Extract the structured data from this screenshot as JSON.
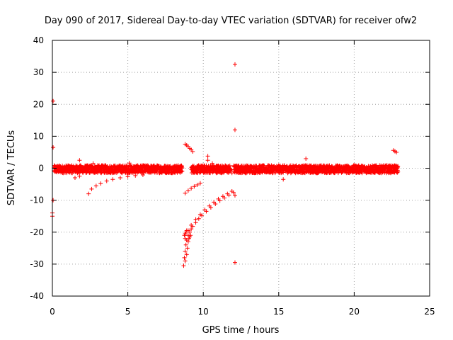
{
  "chart_data": {
    "type": "scatter",
    "title": "Day 090 of 2017, Sidereal Day-to-day VTEC variation (SDTVAR) for receiver ofw2",
    "xlabel": "GPS time / hours",
    "ylabel": "SDTVAR / TECUs",
    "xlim": [
      0,
      25
    ],
    "ylim": [
      -40,
      40
    ],
    "xticks": [
      0,
      5,
      10,
      15,
      20,
      25
    ],
    "yticks": [
      -40,
      -30,
      -20,
      -10,
      0,
      10,
      20,
      30,
      40
    ],
    "grid": true,
    "marker": "+",
    "series_color": "#ff0000",
    "background_band": {
      "x_range": [
        0.1,
        22.9
      ],
      "center_y": -0.3,
      "spread": 1.2,
      "gaps": [
        [
          8.6,
          9.2
        ],
        [
          11.8,
          12.0
        ]
      ]
    },
    "series": [
      {
        "name": "SDTVAR",
        "points": [
          [
            0.05,
            21.0
          ],
          [
            0.05,
            6.5
          ],
          [
            0.05,
            -10.0
          ],
          [
            0.0,
            -14.0
          ],
          [
            0.0,
            -15.0
          ],
          [
            12.1,
            32.5
          ],
          [
            12.1,
            12.0
          ],
          [
            12.1,
            -8.5
          ],
          [
            12.1,
            -29.5
          ],
          [
            16.8,
            3.0
          ],
          [
            5.1,
            1.6
          ],
          [
            9.7,
            -0.2
          ],
          [
            10.3,
            3.8
          ],
          [
            22.6,
            5.6
          ],
          [
            22.8,
            5.0
          ],
          [
            22.7,
            5.3
          ],
          [
            1.8,
            2.5
          ],
          [
            2.7,
            1.5
          ],
          [
            13.7,
            0.8
          ],
          [
            15.3,
            -3.5
          ],
          [
            2.4,
            -8.0
          ],
          [
            2.6,
            -6.5
          ],
          [
            2.9,
            -5.5
          ],
          [
            3.2,
            -4.8
          ],
          [
            3.6,
            -4.0
          ],
          [
            4.0,
            -3.5
          ],
          [
            4.5,
            -3.0
          ],
          [
            5.0,
            -2.6
          ],
          [
            5.5,
            -2.3
          ],
          [
            6.0,
            -2.1
          ],
          [
            1.5,
            -3.0
          ],
          [
            1.8,
            -2.5
          ],
          [
            8.8,
            7.5
          ],
          [
            8.9,
            7.2
          ],
          [
            9.0,
            6.8
          ],
          [
            9.1,
            6.2
          ],
          [
            9.2,
            5.8
          ],
          [
            9.3,
            5.2
          ],
          [
            8.8,
            -7.8
          ],
          [
            9.0,
            -7.0
          ],
          [
            9.2,
            -6.3
          ],
          [
            9.4,
            -5.7
          ],
          [
            9.6,
            -5.2
          ],
          [
            9.8,
            -4.7
          ],
          [
            8.7,
            -30.5
          ],
          [
            8.75,
            -28.0
          ],
          [
            8.8,
            -26.0
          ],
          [
            8.85,
            -24.0
          ],
          [
            8.9,
            -22.5
          ],
          [
            9.0,
            -21.0
          ],
          [
            9.1,
            -20.0
          ],
          [
            9.2,
            -19.0
          ],
          [
            9.3,
            -18.2
          ],
          [
            9.5,
            -17.0
          ],
          [
            9.7,
            -15.8
          ],
          [
            9.9,
            -14.8
          ],
          [
            10.2,
            -13.5
          ],
          [
            10.5,
            -12.3
          ],
          [
            10.8,
            -11.2
          ],
          [
            11.1,
            -10.2
          ],
          [
            11.4,
            -9.3
          ],
          [
            11.7,
            -8.4
          ],
          [
            12.0,
            -7.6
          ],
          [
            8.8,
            -22.0
          ],
          [
            9.0,
            -19.5
          ],
          [
            9.2,
            -17.8
          ],
          [
            9.5,
            -16.0
          ],
          [
            9.8,
            -14.5
          ],
          [
            10.1,
            -13.0
          ],
          [
            10.4,
            -11.8
          ],
          [
            10.7,
            -10.6
          ],
          [
            11.0,
            -9.6
          ],
          [
            11.3,
            -8.8
          ],
          [
            11.6,
            -8.0
          ],
          [
            11.9,
            -7.2
          ],
          [
            8.75,
            -21.0
          ],
          [
            8.8,
            -20.5
          ],
          [
            8.85,
            -20.0
          ],
          [
            8.9,
            -19.5
          ],
          [
            8.95,
            -25.0
          ],
          [
            8.9,
            -27.0
          ],
          [
            8.8,
            -29.0
          ],
          [
            9.0,
            -23.0
          ],
          [
            9.05,
            -22.0
          ],
          [
            9.1,
            -21.5
          ],
          [
            9.15,
            -21.0
          ],
          [
            10.3,
            2.5
          ],
          [
            10.6,
            1.5
          ],
          [
            11.0,
            0.8
          ],
          [
            11.5,
            -0.5
          ],
          [
            11.9,
            -1.5
          ]
        ]
      }
    ]
  }
}
